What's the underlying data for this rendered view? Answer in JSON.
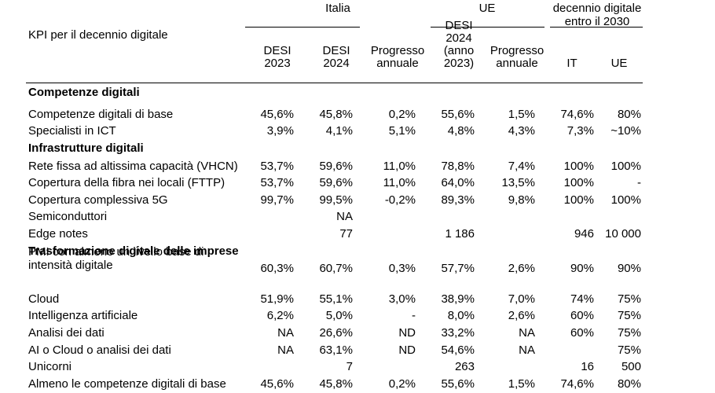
{
  "table": {
    "header": {
      "kpi_title": "KPI per il decennio digitale",
      "group_italia": "Italia",
      "group_ue": "UE",
      "group_target": [
        "decennio digitale",
        "entro il 2030"
      ],
      "columns": [
        [
          "DESI",
          "2023"
        ],
        [
          "DESI",
          "2024"
        ],
        [
          "Progresso",
          "annuale"
        ],
        [
          "DESI",
          "2024",
          "(anno",
          "2023)"
        ],
        [
          "Progresso",
          "annuale"
        ],
        [
          "IT"
        ],
        [
          "UE"
        ]
      ]
    },
    "rows": [
      {
        "type": "section",
        "label": "Competenze digitali"
      },
      {
        "type": "data",
        "label": "Competenze digitali di base",
        "values": [
          "45,6%",
          "45,8%",
          "0,2%",
          "55,6%",
          "1,5%",
          "74,6%",
          "80%"
        ]
      },
      {
        "type": "data",
        "label": "Specialisti in ICT",
        "values": [
          "3,9%",
          "4,1%",
          "5,1%",
          "4,8%",
          "4,3%",
          "7,3%",
          "~10%"
        ]
      },
      {
        "type": "section",
        "label": "Infrastrutture digitali"
      },
      {
        "type": "data",
        "label": "Rete fissa ad altissima capacità (VHCN)",
        "values": [
          "53,7%",
          "59,6%",
          "11,0%",
          "78,8%",
          "7,4%",
          "100%",
          "100%"
        ]
      },
      {
        "type": "data",
        "label": "Copertura della fibra nei locali (FTTP)",
        "values": [
          "53,7%",
          "59,6%",
          "11,0%",
          "64,0%",
          "13,5%",
          "100%",
          "-"
        ]
      },
      {
        "type": "data",
        "label": "Copertura complessiva 5G",
        "values": [
          "99,7%",
          "99,5%",
          "-0,2%",
          "89,3%",
          "9,8%",
          "100%",
          "100%"
        ]
      },
      {
        "type": "data",
        "label": "Semiconduttori",
        "values": [
          "",
          "NA",
          "",
          "",
          "",
          "",
          ""
        ]
      },
      {
        "type": "data",
        "label": "Edge notes",
        "values": [
          "",
          "77",
          "",
          "1 186",
          "",
          "946",
          "10 000"
        ]
      },
      {
        "type": "section",
        "label": "Trasformazione digitale delle imprese"
      },
      {
        "type": "data2",
        "label": [
          "PMI con almeno un livello base di",
          "intensità digitale"
        ],
        "values": [
          "60,3%",
          "60,7%",
          "0,3%",
          "57,7%",
          "2,6%",
          "90%",
          "90%"
        ]
      },
      {
        "type": "data",
        "label": "Cloud",
        "values": [
          "51,9%",
          "55,1%",
          "3,0%",
          "38,9%",
          "7,0%",
          "74%",
          "75%"
        ]
      },
      {
        "type": "data",
        "label": "Intelligenza artificiale",
        "values": [
          "6,2%",
          "5,0%",
          "-",
          "8,0%",
          "2,6%",
          "60%",
          "75%"
        ]
      },
      {
        "type": "data",
        "label": "Analisi dei dati",
        "values": [
          "NA",
          "26,6%",
          "ND",
          "33,2%",
          "NA",
          "60%",
          "75%"
        ]
      },
      {
        "type": "data",
        "label": "AI o Cloud o analisi dei dati",
        "values": [
          "NA",
          "63,1%",
          "ND",
          "54,6%",
          "NA",
          "",
          "75%"
        ]
      },
      {
        "type": "data",
        "label": "Unicorni",
        "values": [
          "",
          "7",
          "",
          "263",
          "",
          "16",
          "500"
        ]
      },
      {
        "type": "data",
        "label": "Almeno le competenze digitali di base",
        "values": [
          "45,6%",
          "45,8%",
          "0,2%",
          "55,6%",
          "1,5%",
          "74,6%",
          "80%"
        ]
      }
    ]
  }
}
